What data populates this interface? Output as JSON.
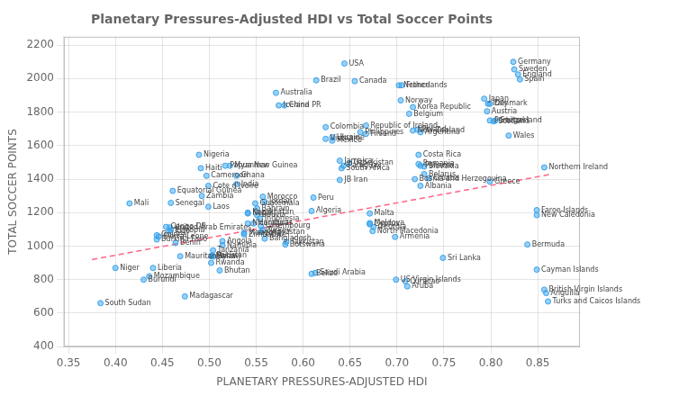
{
  "chart_data": {
    "type": "scatter",
    "title": "Planetary Pressures-Adjusted HDI vs Total Soccer Points",
    "xlabel": "PLANETARY PRESSURES-ADJUSTED HDI",
    "ylabel": "TOTAL SOCCER POINTS",
    "xlim": [
      0.345,
      0.895
    ],
    "ylim": [
      400,
      2250
    ],
    "xticks": [
      0.35,
      {
        "value": 0.4,
        "label": "0.40"
      },
      0.45,
      {
        "value": 0.5,
        "label": "0.50"
      },
      0.55,
      {
        "value": 0.6,
        "label": "0.60"
      },
      0.65,
      {
        "value": 0.7,
        "label": "0.70"
      },
      0.75,
      {
        "value": 0.8,
        "label": "0.80"
      },
      0.85
    ],
    "yticks": [
      400,
      600,
      800,
      1000,
      1200,
      1400,
      1600,
      1800,
      2000,
      2200
    ],
    "grid": true,
    "series": [
      {
        "type": "scatter",
        "marker": "circle",
        "x": [
          0.384,
          0.4,
          0.415,
          0.43,
          0.436,
          0.44,
          0.444,
          0.444,
          0.446,
          0.454,
          0.457,
          0.459,
          0.459,
          0.461,
          0.464,
          0.469,
          0.474,
          0.489,
          0.491,
          0.492,
          0.497,
          0.499,
          0.499,
          0.458,
          0.502,
          0.502,
          0.503,
          0.504,
          0.504,
          0.511,
          0.514,
          0.514,
          0.517,
          0.522,
          0.529,
          0.529,
          0.537,
          0.537,
          0.541,
          0.541,
          0.541,
          0.547,
          0.549,
          0.551,
          0.551,
          0.554,
          0.555,
          0.555,
          0.557,
          0.559,
          0.557,
          0.559,
          0.582,
          0.581,
          0.571,
          0.574,
          0.58,
          0.611,
          0.609,
          0.609,
          0.613,
          0.624,
          0.624,
          0.631,
          0.631,
          0.639,
          0.639,
          0.641,
          0.643,
          0.649,
          0.614,
          0.644,
          0.655,
          0.667,
          0.661,
          0.667,
          0.671,
          0.671,
          0.674,
          0.675,
          0.671,
          0.698,
          0.702,
          0.705,
          0.704,
          0.717,
          0.713,
          0.717,
          0.722,
          0.725,
          0.723,
          0.723,
          0.729,
          0.725,
          0.729,
          0.719,
          0.734,
          0.725,
          0.699,
          0.709,
          0.711,
          0.749,
          0.793,
          0.799,
          0.797,
          0.796,
          0.799,
          0.805,
          0.803,
          0.799,
          0.819,
          0.824,
          0.825,
          0.829,
          0.831,
          0.857,
          0.849,
          0.849,
          0.839,
          0.849,
          0.857,
          0.859,
          0.861
        ],
        "values": [
          660,
          870,
          1255,
          800,
          820,
          870,
          1065,
          1040,
          1058,
          1115,
          1090,
          1096,
          1258,
          1330,
          1020,
          940,
          700,
          1545,
          1465,
          1300,
          1420,
          1360,
          1235,
          1112,
          900,
          940,
          945,
          938,
          975,
          855,
          1030,
          1005,
          1480,
          1480,
          1420,
          1370,
          1080,
          1070,
          1200,
          1195,
          1135,
          1135,
          1255,
          1225,
          1185,
          1165,
          1120,
          1085,
          1295,
          1265,
          1095,
          1045,
          1025,
          1010,
          1915,
          1840,
          1840,
          1290,
          1210,
          835,
          840,
          1640,
          1710,
          1630,
          1650,
          1510,
          1395,
          1465,
          1480,
          1495,
          1990,
          2090,
          1985,
          1720,
          1680,
          1670,
          1195,
          1130,
          1090,
          1115,
          1138,
          1055,
          1960,
          1960,
          1870,
          1830,
          1790,
          1690,
          1695,
          1680,
          1545,
          1490,
          1475,
          1480,
          1430,
          1400,
          1405,
          1360,
          800,
          790,
          760,
          930,
          1880,
          1850,
          1850,
          1805,
          1750,
          1750,
          1745,
          1385,
          1660,
          2100,
          2055,
          2025,
          1995,
          1470,
          1215,
          1185,
          1010,
          860,
          740,
          720,
          670
        ],
        "annotations": [
          "South Sudan",
          "Niger",
          "Mali",
          "Burundi",
          "Mozambique",
          "Liberia",
          "Guinea",
          "Burkina Faso",
          "Sierra Leone",
          "Congo DR",
          "Togo",
          "Ethiopia",
          "Senegal",
          "Equatorial Guinea",
          "Benin",
          "Mauritania",
          "Madagascar",
          "Nigeria",
          "Haiti",
          "Zambia",
          "Cameroon",
          "Cote d'Ivoire",
          "Laos",
          "United Arab Emirates",
          "Rwanda",
          "Malawi",
          "Pakistan",
          "Syria",
          "Tanzania",
          "Bhutan",
          "Angola",
          "Namibia",
          "Papua New Guinea",
          "Myanmar",
          "Ghana",
          "India",
          "Mongolia",
          "Zimbabwe",
          "Kazakhstan",
          "Nepal",
          "Nicaragua",
          "Honduras",
          "Guatemala",
          "Bahrain",
          "Bolivia",
          "Indonesia",
          "Luxembourg",
          "Kyrgyzstan",
          "Morocco",
          "Jordan",
          "Turkey",
          "Bangladesh",
          "Tajikistan",
          "Botswana",
          "Australia",
          "Iceland",
          "China PR",
          "Peru",
          "Algeria",
          "Belize",
          "Saudi Arabia",
          "Vietnam",
          "Colombia",
          "Mexico",
          "Ukraine",
          "Jamaica",
          "JB Iran",
          "South Africa",
          "Paraguay",
          "Uzbekistan",
          "Brazil",
          "USA",
          "Canada",
          "Republic of Ireland",
          "Philippines",
          "Finland",
          "Malta",
          "Cyprus",
          "North Macedonia",
          "Georgia",
          "Moldova",
          "Armenia",
          "Netherlands",
          "France",
          "Norway",
          "Korea Republic",
          "Belgium",
          "New Zealand",
          "Poland",
          "Argentina",
          "Costa Rica",
          "Romania",
          "Slovakia",
          "Panama",
          "Belarus",
          "Bosnia and Herzegovina",
          "Croatia",
          "Albania",
          "US Virgin Islands",
          "Curacao",
          "Aruba",
          "Sri Lanka",
          "Japan",
          "Denmark",
          "Italy",
          "Austria",
          "Portugal",
          "Switzerland",
          "Scotland",
          "Greece",
          "Wales",
          "Germany",
          "Sweden",
          "England",
          "Spain",
          "Northern Ireland",
          "Faroe Islands",
          "New Caledonia",
          "Bermuda",
          "Cayman Islands",
          "British Virgin Islands",
          "Anguilla",
          "Turks and Caicos Islands"
        ]
      },
      {
        "type": "line",
        "line_style": "dashed",
        "x": [
          0.375,
          0.865
        ],
        "values": [
          920,
          1430
        ]
      }
    ]
  }
}
